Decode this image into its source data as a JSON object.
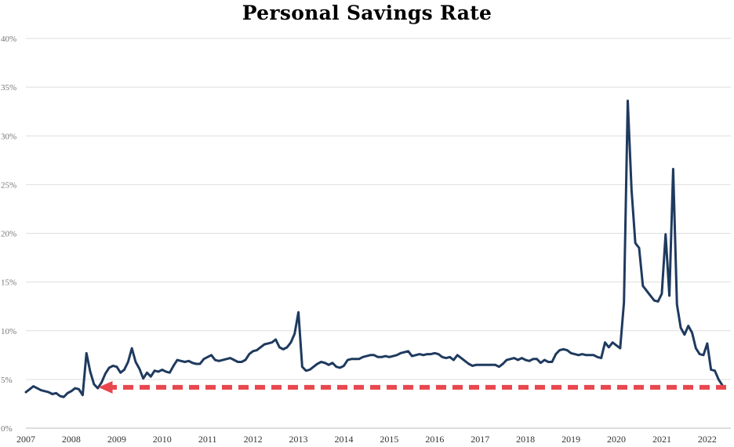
{
  "chart_data": {
    "type": "line",
    "title": "Personal Savings Rate",
    "xlabel": "",
    "ylabel": "",
    "ylim": [
      0,
      40
    ],
    "xlim": [
      "2007-01",
      "2022-06"
    ],
    "grid": true,
    "yticks": [
      "0%",
      "5%",
      "10%",
      "15%",
      "20%",
      "25%",
      "30%",
      "35%",
      "40%"
    ],
    "xticks": [
      "2007",
      "2008",
      "2009",
      "2010",
      "2011",
      "2012",
      "2013",
      "2014",
      "2015",
      "2016",
      "2017",
      "2018",
      "2019",
      "2020",
      "2021",
      "2022"
    ],
    "series": [
      {
        "color": "#1f3a5f",
        "points": [
          [
            "2007-01",
            3.7
          ],
          [
            "2007-02",
            4.0
          ],
          [
            "2007-03",
            4.3
          ],
          [
            "2007-04",
            4.1
          ],
          [
            "2007-05",
            3.9
          ],
          [
            "2007-06",
            3.8
          ],
          [
            "2007-07",
            3.7
          ],
          [
            "2007-08",
            3.5
          ],
          [
            "2007-09",
            3.6
          ],
          [
            "2007-10",
            3.3
          ],
          [
            "2007-11",
            3.2
          ],
          [
            "2007-12",
            3.6
          ],
          [
            "2008-01",
            3.8
          ],
          [
            "2008-02",
            4.1
          ],
          [
            "2008-03",
            4.0
          ],
          [
            "2008-04",
            3.4
          ],
          [
            "2008-05",
            7.7
          ],
          [
            "2008-06",
            5.8
          ],
          [
            "2008-07",
            4.5
          ],
          [
            "2008-08",
            4.1
          ],
          [
            "2008-09",
            4.7
          ],
          [
            "2008-10",
            5.6
          ],
          [
            "2008-11",
            6.2
          ],
          [
            "2008-12",
            6.4
          ],
          [
            "2009-01",
            6.3
          ],
          [
            "2009-02",
            5.7
          ],
          [
            "2009-03",
            6.0
          ],
          [
            "2009-04",
            6.8
          ],
          [
            "2009-05",
            8.2
          ],
          [
            "2009-06",
            6.8
          ],
          [
            "2009-07",
            6.1
          ],
          [
            "2009-08",
            5.1
          ],
          [
            "2009-09",
            5.7
          ],
          [
            "2009-10",
            5.3
          ],
          [
            "2009-11",
            5.9
          ],
          [
            "2009-12",
            5.8
          ],
          [
            "2010-01",
            6.0
          ],
          [
            "2010-02",
            5.8
          ],
          [
            "2010-03",
            5.7
          ],
          [
            "2010-04",
            6.4
          ],
          [
            "2010-05",
            7.0
          ],
          [
            "2010-06",
            6.9
          ],
          [
            "2010-07",
            6.8
          ],
          [
            "2010-08",
            6.9
          ],
          [
            "2010-09",
            6.7
          ],
          [
            "2010-10",
            6.6
          ],
          [
            "2010-11",
            6.6
          ],
          [
            "2010-12",
            7.1
          ],
          [
            "2011-01",
            7.3
          ],
          [
            "2011-02",
            7.5
          ],
          [
            "2011-03",
            7.0
          ],
          [
            "2011-04",
            6.9
          ],
          [
            "2011-05",
            7.0
          ],
          [
            "2011-06",
            7.1
          ],
          [
            "2011-07",
            7.2
          ],
          [
            "2011-08",
            7.0
          ],
          [
            "2011-09",
            6.8
          ],
          [
            "2011-10",
            6.8
          ],
          [
            "2011-11",
            7.0
          ],
          [
            "2011-12",
            7.6
          ],
          [
            "2012-01",
            7.9
          ],
          [
            "2012-02",
            8.0
          ],
          [
            "2012-03",
            8.3
          ],
          [
            "2012-04",
            8.6
          ],
          [
            "2012-05",
            8.7
          ],
          [
            "2012-06",
            8.8
          ],
          [
            "2012-07",
            9.1
          ],
          [
            "2012-08",
            8.3
          ],
          [
            "2012-09",
            8.1
          ],
          [
            "2012-10",
            8.3
          ],
          [
            "2012-11",
            8.8
          ],
          [
            "2012-12",
            9.7
          ],
          [
            "2013-01",
            11.9
          ],
          [
            "2013-02",
            6.3
          ],
          [
            "2013-03",
            5.9
          ],
          [
            "2013-04",
            6.0
          ],
          [
            "2013-05",
            6.3
          ],
          [
            "2013-06",
            6.6
          ],
          [
            "2013-07",
            6.8
          ],
          [
            "2013-08",
            6.7
          ],
          [
            "2013-09",
            6.5
          ],
          [
            "2013-10",
            6.7
          ],
          [
            "2013-11",
            6.3
          ],
          [
            "2013-12",
            6.2
          ],
          [
            "2014-01",
            6.4
          ],
          [
            "2014-02",
            7.0
          ],
          [
            "2014-03",
            7.1
          ],
          [
            "2014-04",
            7.1
          ],
          [
            "2014-05",
            7.1
          ],
          [
            "2014-06",
            7.3
          ],
          [
            "2014-07",
            7.4
          ],
          [
            "2014-08",
            7.5
          ],
          [
            "2014-09",
            7.5
          ],
          [
            "2014-10",
            7.3
          ],
          [
            "2014-11",
            7.3
          ],
          [
            "2014-12",
            7.4
          ],
          [
            "2015-01",
            7.3
          ],
          [
            "2015-02",
            7.4
          ],
          [
            "2015-03",
            7.5
          ],
          [
            "2015-04",
            7.7
          ],
          [
            "2015-05",
            7.8
          ],
          [
            "2015-06",
            7.9
          ],
          [
            "2015-07",
            7.4
          ],
          [
            "2015-08",
            7.5
          ],
          [
            "2015-09",
            7.6
          ],
          [
            "2015-10",
            7.5
          ],
          [
            "2015-11",
            7.6
          ],
          [
            "2015-12",
            7.6
          ],
          [
            "2016-01",
            7.7
          ],
          [
            "2016-02",
            7.6
          ],
          [
            "2016-03",
            7.3
          ],
          [
            "2016-04",
            7.2
          ],
          [
            "2016-05",
            7.3
          ],
          [
            "2016-06",
            7.0
          ],
          [
            "2016-07",
            7.5
          ],
          [
            "2016-08",
            7.2
          ],
          [
            "2016-09",
            6.9
          ],
          [
            "2016-10",
            6.6
          ],
          [
            "2016-11",
            6.4
          ],
          [
            "2016-12",
            6.5
          ],
          [
            "2017-01",
            6.5
          ],
          [
            "2017-02",
            6.5
          ],
          [
            "2017-03",
            6.5
          ],
          [
            "2017-04",
            6.5
          ],
          [
            "2017-05",
            6.5
          ],
          [
            "2017-06",
            6.3
          ],
          [
            "2017-07",
            6.6
          ],
          [
            "2017-08",
            7.0
          ],
          [
            "2017-09",
            7.1
          ],
          [
            "2017-10",
            7.2
          ],
          [
            "2017-11",
            7.0
          ],
          [
            "2017-12",
            7.2
          ],
          [
            "2018-01",
            7.0
          ],
          [
            "2018-02",
            6.9
          ],
          [
            "2018-03",
            7.1
          ],
          [
            "2018-04",
            7.1
          ],
          [
            "2018-05",
            6.7
          ],
          [
            "2018-06",
            7.0
          ],
          [
            "2018-07",
            6.8
          ],
          [
            "2018-08",
            6.8
          ],
          [
            "2018-09",
            7.6
          ],
          [
            "2018-10",
            8.0
          ],
          [
            "2018-11",
            8.1
          ],
          [
            "2018-12",
            8.0
          ],
          [
            "2019-01",
            7.7
          ],
          [
            "2019-02",
            7.6
          ],
          [
            "2019-03",
            7.5
          ],
          [
            "2019-04",
            7.6
          ],
          [
            "2019-05",
            7.5
          ],
          [
            "2019-06",
            7.5
          ],
          [
            "2019-07",
            7.5
          ],
          [
            "2019-08",
            7.3
          ],
          [
            "2019-09",
            7.2
          ],
          [
            "2019-10",
            8.8
          ],
          [
            "2019-11",
            8.3
          ],
          [
            "2019-12",
            8.8
          ],
          [
            "2020-01",
            8.5
          ],
          [
            "2020-02",
            8.2
          ],
          [
            "2020-03",
            12.9
          ],
          [
            "2020-04",
            33.6
          ],
          [
            "2020-05",
            24.5
          ],
          [
            "2020-06",
            19.0
          ],
          [
            "2020-07",
            18.5
          ],
          [
            "2020-08",
            14.6
          ],
          [
            "2020-09",
            14.1
          ],
          [
            "2020-10",
            13.6
          ],
          [
            "2020-11",
            13.1
          ],
          [
            "2020-12",
            13.0
          ],
          [
            "2021-01",
            13.8
          ],
          [
            "2021-02",
            19.9
          ],
          [
            "2021-03",
            13.6
          ],
          [
            "2021-04",
            26.6
          ],
          [
            "2021-05",
            12.7
          ],
          [
            "2021-06",
            10.3
          ],
          [
            "2021-07",
            9.6
          ],
          [
            "2021-08",
            10.5
          ],
          [
            "2021-09",
            9.8
          ],
          [
            "2021-10",
            8.2
          ],
          [
            "2021-11",
            7.6
          ],
          [
            "2021-12",
            7.5
          ],
          [
            "2022-01",
            8.7
          ],
          [
            "2022-02",
            6.0
          ],
          [
            "2022-03",
            5.9
          ],
          [
            "2022-04",
            5.0
          ],
          [
            "2022-05",
            4.4
          ]
        ]
      }
    ],
    "annotations": [
      {
        "type": "dashed-arrow",
        "color": "#e8474d",
        "y": 4.2,
        "from": "2022-06",
        "to": "2008-09",
        "direction": "left"
      }
    ]
  }
}
